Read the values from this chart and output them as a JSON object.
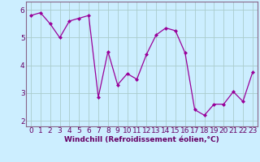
{
  "x": [
    0,
    1,
    2,
    3,
    4,
    5,
    6,
    7,
    8,
    9,
    10,
    11,
    12,
    13,
    14,
    15,
    16,
    17,
    18,
    19,
    20,
    21,
    22,
    23
  ],
  "y": [
    5.8,
    5.9,
    5.5,
    5.0,
    5.6,
    5.7,
    5.8,
    2.85,
    4.5,
    3.3,
    3.7,
    3.5,
    4.4,
    5.1,
    5.35,
    5.25,
    4.45,
    2.4,
    2.2,
    2.6,
    2.6,
    3.05,
    2.7,
    3.75
  ],
  "line_color": "#990099",
  "marker": "D",
  "marker_size": 2,
  "bg_color": "#cceeff",
  "grid_color": "#aacccc",
  "xlabel": "Windchill (Refroidissement éolien,°C)",
  "xlim": [
    -0.5,
    23.5
  ],
  "ylim": [
    1.8,
    6.3
  ],
  "yticks": [
    2,
    3,
    4,
    5,
    6
  ],
  "xticks": [
    0,
    1,
    2,
    3,
    4,
    5,
    6,
    7,
    8,
    9,
    10,
    11,
    12,
    13,
    14,
    15,
    16,
    17,
    18,
    19,
    20,
    21,
    22,
    23
  ],
  "xlabel_fontsize": 6.5,
  "tick_fontsize": 6.5,
  "label_color": "#660066",
  "spine_color": "#886688"
}
